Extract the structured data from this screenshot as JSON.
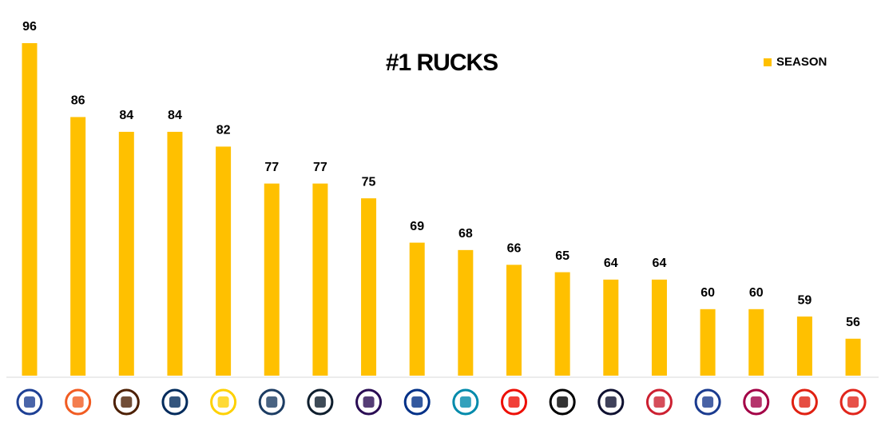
{
  "chart_data": {
    "type": "bar",
    "title": "#1 RUCKS",
    "categories": [
      null,
      null,
      null,
      null,
      null,
      null,
      null,
      null,
      null,
      null,
      null,
      null,
      null,
      null,
      null,
      null,
      null,
      null
    ],
    "series": [
      {
        "name": "SEASON",
        "color": "#FFC000",
        "values": [
          96,
          86,
          84,
          84,
          82,
          77,
          77,
          75,
          69,
          68,
          66,
          65,
          64,
          64,
          60,
          60,
          59,
          56
        ]
      }
    ],
    "ylim": [
      51,
      96
    ],
    "legend": "top-right"
  }
}
